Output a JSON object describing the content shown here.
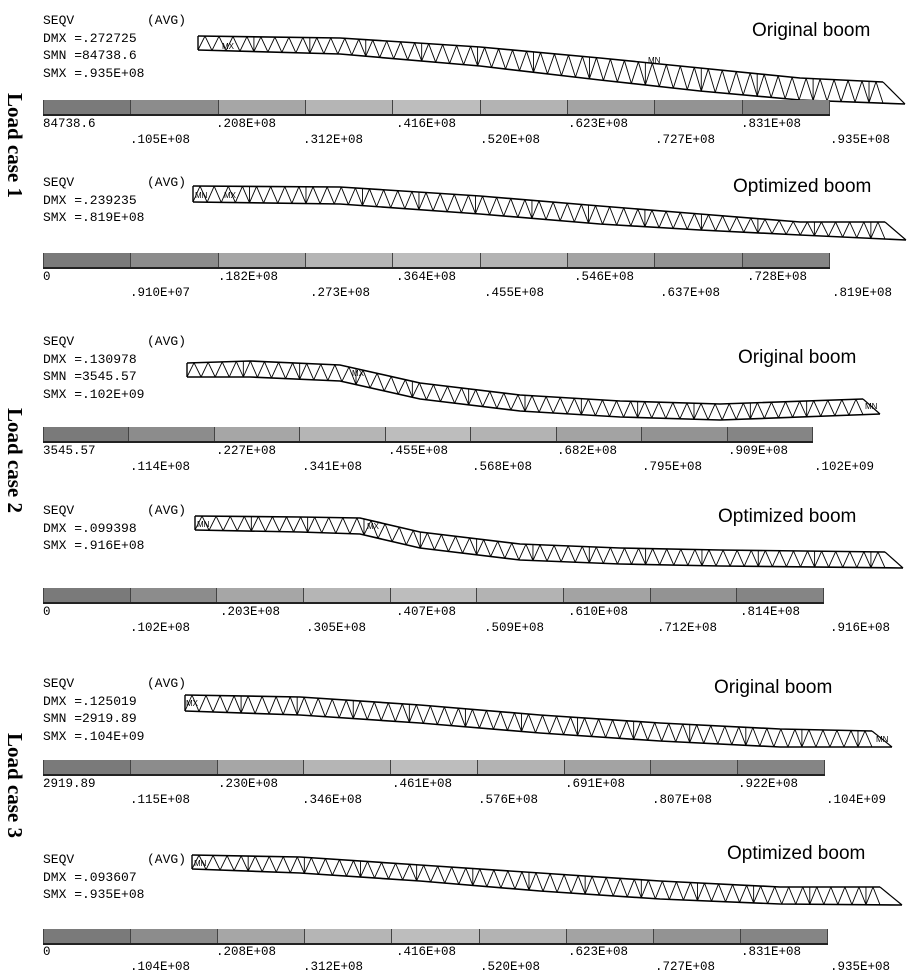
{
  "load_cases": [
    {
      "label": "Load case 1",
      "panels": [
        {
          "title": "Original boom",
          "info": {
            "seqv": "SEQV",
            "avg": "(AVG)",
            "dmx": "DMX =.272725",
            "smn": "SMN =84738.6",
            "smx": "SMX =.935E+08"
          },
          "tags": [
            "MX",
            "MN"
          ],
          "legend_top": [
            "84738.6",
            ".208E+08",
            ".416E+08",
            ".623E+08",
            ".831E+08"
          ],
          "legend_bottom": [
            ".105E+08",
            ".312E+08",
            ".520E+08",
            ".727E+08",
            ".935E+08"
          ]
        },
        {
          "title": "Optimized boom",
          "info": {
            "seqv": "SEQV",
            "avg": "(AVG)",
            "dmx": "DMX =.239235",
            "smx": "SMX =.819E+08"
          },
          "tags": [
            "MN",
            "MX"
          ],
          "legend_top": [
            "0",
            ".182E+08",
            ".364E+08",
            ".546E+08",
            ".728E+08"
          ],
          "legend_bottom": [
            ".910E+07",
            ".273E+08",
            ".455E+08",
            ".637E+08",
            ".819E+08"
          ]
        }
      ]
    },
    {
      "label": "Load case 2",
      "panels": [
        {
          "title": "Original boom",
          "info": {
            "seqv": "SEQV",
            "avg": "(AVG)",
            "dmx": "DMX =.130978",
            "smn": "SMN =3545.57",
            "smx": "SMX =.102E+09"
          },
          "tags": [
            "MX",
            "MN"
          ],
          "legend_top": [
            "3545.57",
            ".227E+08",
            ".455E+08",
            ".682E+08",
            ".909E+08"
          ],
          "legend_bottom": [
            ".114E+08",
            ".341E+08",
            ".568E+08",
            ".795E+08",
            ".102E+09"
          ]
        },
        {
          "title": "Optimized boom",
          "info": {
            "seqv": "SEQV",
            "avg": "(AVG)",
            "dmx": "DMX =.099398",
            "smx": "SMX =.916E+08"
          },
          "tags": [
            "MN",
            "MX"
          ],
          "legend_top": [
            "0",
            ".203E+08",
            ".407E+08",
            ".610E+08",
            ".814E+08"
          ],
          "legend_bottom": [
            ".102E+08",
            ".305E+08",
            ".509E+08",
            ".712E+08",
            ".916E+08"
          ]
        }
      ]
    },
    {
      "label": "Load case 3",
      "panels": [
        {
          "title": "Original boom",
          "info": {
            "seqv": "SEQV",
            "avg": "(AVG)",
            "dmx": "DMX =.125019",
            "smn": "SMN =2919.89",
            "smx": "SMX =.104E+09"
          },
          "tags": [
            "MX",
            "MN"
          ],
          "legend_top": [
            "2919.89",
            ".230E+08",
            ".461E+08",
            ".691E+08",
            ".922E+08"
          ],
          "legend_bottom": [
            ".115E+08",
            ".346E+08",
            ".576E+08",
            ".807E+08",
            ".104E+09"
          ]
        },
        {
          "title": "Optimized boom",
          "info": {
            "seqv": "SEQV",
            "avg": "(AVG)",
            "dmx": "DMX =.093607",
            "smx": "SMX =.935E+08"
          },
          "tags": [
            "MN"
          ],
          "legend_top": [
            "0",
            ".208E+08",
            ".416E+08",
            ".623E+08",
            ".831E+08"
          ],
          "legend_bottom": [
            ".104E+08",
            ".312E+08",
            ".520E+08",
            ".727E+08",
            ".935E+08"
          ]
        }
      ]
    }
  ],
  "legend_colors": [
    "#7a7a7a",
    "#8c8c8c",
    "#a6a6a6",
    "#b5b5b5",
    "#bdbdbd",
    "#b3b3b3",
    "#a3a3a3",
    "#939393",
    "#858585"
  ]
}
